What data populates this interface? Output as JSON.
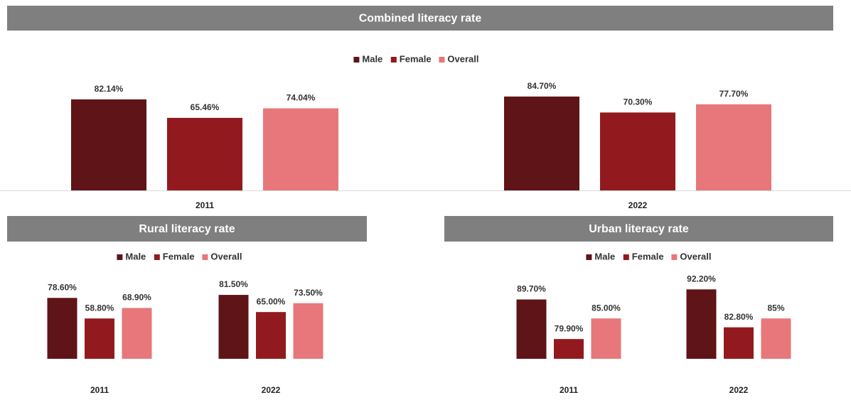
{
  "chart_data": [
    {
      "type": "bar",
      "title": "Combined literacy rate",
      "categories": [
        "2011",
        "2022"
      ],
      "ylim": [
        0,
        100
      ],
      "series": [
        {
          "name": "Male",
          "color": "#5f1418",
          "values": [
            82.14,
            84.7
          ],
          "value_labels": [
            "82.14%",
            "84.70%"
          ]
        },
        {
          "name": "Female",
          "color": "#921a1e",
          "values": [
            65.46,
            70.3
          ],
          "value_labels": [
            "65.46%",
            "70.30%"
          ]
        },
        {
          "name": "Overall",
          "color": "#e7777a",
          "values": [
            74.04,
            77.7
          ],
          "value_labels": [
            "74.04%",
            "77.70%"
          ]
        }
      ]
    },
    {
      "type": "bar",
      "title": "Rural literacy rate",
      "categories": [
        "2011",
        "2022"
      ],
      "ylim": [
        20,
        100
      ],
      "series": [
        {
          "name": "Male",
          "color": "#5f1418",
          "values": [
            78.6,
            81.5
          ],
          "value_labels": [
            "78.60%",
            "81.50%"
          ]
        },
        {
          "name": "Female",
          "color": "#921a1e",
          "values": [
            58.8,
            65.0
          ],
          "value_labels": [
            "58.80%",
            "65.00%"
          ]
        },
        {
          "name": "Overall",
          "color": "#e7777a",
          "values": [
            68.9,
            73.5
          ],
          "value_labels": [
            "68.90%",
            "73.50%"
          ]
        }
      ]
    },
    {
      "type": "bar",
      "title": "Urban literacy rate",
      "categories": [
        "2011",
        "2022"
      ],
      "ylim": [
        75,
        100
      ],
      "series": [
        {
          "name": "Male",
          "color": "#5f1418",
          "values": [
            89.7,
            92.2
          ],
          "value_labels": [
            "89.70%",
            "92.20%"
          ]
        },
        {
          "name": "Female",
          "color": "#921a1e",
          "values": [
            79.9,
            82.8
          ],
          "value_labels": [
            "79.90%",
            "82.80%"
          ]
        },
        {
          "name": "Overall",
          "color": "#e7777a",
          "values": [
            85.0,
            85
          ],
          "value_labels": [
            "85.00%",
            "85%"
          ]
        }
      ]
    }
  ]
}
